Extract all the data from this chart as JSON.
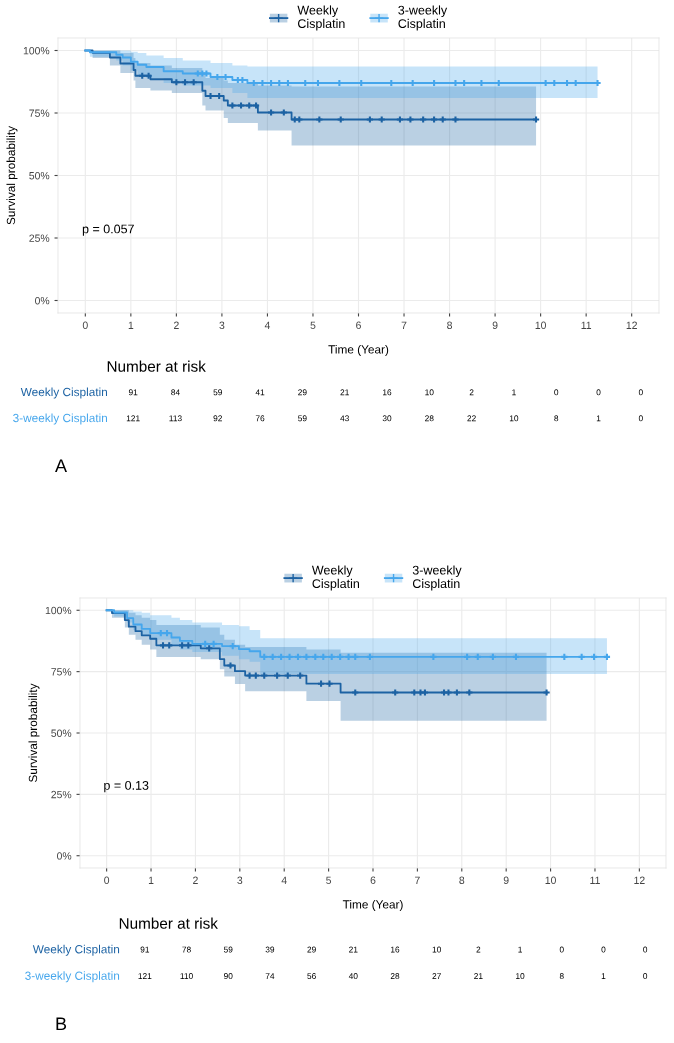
{
  "chart_data": [
    {
      "type": "step",
      "xlabel": "Time (Year)",
      "ylabel": "Survival probability",
      "annotations": [
        "p = 0.057"
      ],
      "xlim": [
        -0.6,
        12.6
      ],
      "xticks": [
        0,
        1,
        2,
        3,
        4,
        5,
        6,
        7,
        8,
        9,
        10,
        11,
        12
      ],
      "ylim": [
        -5,
        105
      ],
      "yticks": [
        {
          "value": 0,
          "label": "0%"
        },
        {
          "value": 25,
          "label": "25%"
        },
        {
          "value": 50,
          "label": "50%"
        },
        {
          "value": 75,
          "label": "75%"
        },
        {
          "value": 100,
          "label": "100%"
        }
      ],
      "grid": true,
      "legend": "top",
      "series": [
        {
          "name": "Weekly\nCisplatin",
          "color": "#1c62a3",
          "x": [
            0,
            0.16,
            0.54,
            0.77,
            1.06,
            1.1,
            1.43,
            1.9,
            2.57,
            2.64,
            3.04,
            3.13,
            3.79,
            4.53,
            9.9
          ],
          "values": [
            100,
            99.1,
            97.2,
            94.8,
            92.2,
            89.9,
            88.5,
            87.3,
            83.9,
            81.8,
            80,
            78,
            75.2,
            72.4,
            72.4
          ],
          "lower": [
            100,
            97,
            94,
            91,
            88,
            85,
            84,
            83,
            78,
            76,
            73,
            71,
            68,
            62,
            62
          ],
          "upper": [
            100,
            100,
            100,
            99,
            97,
            95,
            94,
            93,
            91,
            89,
            88,
            87,
            86,
            85.6,
            85.6
          ]
        },
        {
          "name": "3-weekly\nCisplatin",
          "color": "#45a6ec",
          "x": [
            0,
            0.1,
            0.68,
            0.82,
            1.0,
            1.15,
            1.34,
            1.72,
            2.14,
            2.75,
            3.23,
            3.56,
            11.25
          ],
          "values": [
            100,
            99.3,
            98.3,
            97.2,
            95.5,
            94.3,
            93.4,
            91.7,
            90.8,
            89.4,
            88.2,
            87.0,
            87.0
          ],
          "lower": [
            100,
            97.5,
            96,
            94,
            92,
            90,
            89,
            87,
            86,
            85,
            83,
            81,
            81
          ],
          "upper": [
            100,
            100,
            100,
            100,
            99.5,
            99,
            98,
            97,
            96,
            95,
            94,
            93.6,
            93.6
          ]
        },
        {
          "type": "scatter",
          "marker": "cross",
          "color": "#1c62a3",
          "x": [
            1.25,
            1.39,
            2.0,
            2.19,
            2.38,
            2.75,
            2.94,
            3.23,
            3.42,
            3.6,
            3.75,
            4.08,
            4.36,
            4.6,
            4.7,
            5.14,
            5.61,
            6.25,
            6.51,
            6.91,
            7.14,
            7.42,
            7.66,
            7.85,
            8.13,
            9.9
          ],
          "values": [
            89.9,
            89.9,
            87.3,
            87.3,
            87.3,
            81.8,
            81.8,
            78,
            78,
            78,
            78,
            75.2,
            75.2,
            72.4,
            72.4,
            72.4,
            72.4,
            72.4,
            72.4,
            72.4,
            72.4,
            72.4,
            72.4,
            72.4,
            72.4,
            72.4
          ]
        },
        {
          "type": "scatter",
          "marker": "cross",
          "color": "#45a6ec",
          "x": [
            2.47,
            2.57,
            2.66,
            2.9,
            3.08,
            3.35,
            3.45,
            3.7,
            3.89,
            4.08,
            4.26,
            4.45,
            4.83,
            5.11,
            5.58,
            6.06,
            6.72,
            7.19,
            7.66,
            8.13,
            8.32,
            8.7,
            9.08,
            10.11,
            10.3,
            10.58,
            10.77,
            11.25
          ],
          "values": [
            90.8,
            90.8,
            90.8,
            89.4,
            89.4,
            88.2,
            88.2,
            87.0,
            87.0,
            87.0,
            87.0,
            87.0,
            87.0,
            87.0,
            87.0,
            87.0,
            87.0,
            87.0,
            87.0,
            87.0,
            87.0,
            87.0,
            87.0,
            87.0,
            87.0,
            87.0,
            87.0,
            87.0
          ]
        }
      ]
    },
    {
      "type": "other",
      "title": "Number at risk",
      "y_categories": [
        "Weekly Cisplatin",
        "3-weekly Cisplatin"
      ],
      "annotations": [
        "A",
        "91",
        "84",
        "59",
        "41",
        "29",
        "21",
        "16",
        "10",
        "2",
        "1",
        "0",
        "0",
        "0",
        "121",
        "113",
        "92",
        "76",
        "59",
        "43",
        "30",
        "28",
        "22",
        "10",
        "8",
        "1",
        "0"
      ]
    },
    {
      "type": "step",
      "xlabel": "Time (Year)",
      "ylabel": "Survival probability",
      "annotations": [
        "p = 0.13"
      ],
      "xlim": [
        -0.6,
        12.6
      ],
      "xticks": [
        0,
        1,
        2,
        3,
        4,
        5,
        6,
        7,
        8,
        9,
        10,
        11,
        12
      ],
      "ylim": [
        -5,
        105
      ],
      "yticks": [
        {
          "value": 0,
          "label": "0%"
        },
        {
          "value": 25,
          "label": "25%"
        },
        {
          "value": 50,
          "label": "50%"
        },
        {
          "value": 75,
          "label": "75%"
        },
        {
          "value": 100,
          "label": "100%"
        }
      ],
      "grid": true,
      "legend": "top",
      "series": [
        {
          "name": "Weekly\nCisplatin",
          "color": "#1c62a3",
          "x": [
            0,
            0.12,
            0.41,
            0.5,
            0.65,
            0.79,
            0.98,
            1.12,
            2.12,
            2.55,
            2.65,
            2.89,
            3.12,
            4.5,
            5.27,
            9.91
          ],
          "values": [
            100,
            98.9,
            96,
            93.3,
            91.5,
            89.8,
            88.4,
            85.7,
            84.5,
            80.1,
            77.5,
            75.2,
            73.4,
            70.1,
            66.5,
            66.5
          ],
          "lower": [
            100,
            97,
            93,
            90,
            88,
            86,
            84,
            81,
            80,
            76,
            73,
            70,
            67,
            63,
            55,
            55
          ],
          "upper": [
            100,
            100,
            100,
            99,
            98,
            97,
            96,
            94,
            93,
            90,
            88,
            86,
            85,
            84,
            82.7,
            82.7
          ]
        },
        {
          "name": "3-weekly\nCisplatin",
          "color": "#45a6ec",
          "x": [
            0,
            0.17,
            0.46,
            0.6,
            0.79,
            0.98,
            1.46,
            1.65,
            1.93,
            2.6,
            2.98,
            3.22,
            3.46,
            11.27
          ],
          "values": [
            100,
            99.1,
            96.8,
            94.2,
            92.4,
            90.7,
            88.9,
            87.5,
            86.3,
            85.4,
            84.2,
            83.3,
            81,
            81
          ],
          "lower": [
            100,
            97.5,
            95,
            92,
            90,
            88,
            86,
            84,
            83,
            81.5,
            80,
            79,
            74,
            74
          ],
          "upper": [
            100,
            100,
            100,
            99.5,
            99,
            98,
            97,
            96,
            95,
            94,
            93.5,
            92,
            88.6,
            88.6
          ]
        },
        {
          "type": "scatter",
          "marker": "cross",
          "color": "#1c62a3",
          "x": [
            1.27,
            1.41,
            1.7,
            1.84,
            2.31,
            2.79,
            3.22,
            3.36,
            3.55,
            3.84,
            4.08,
            4.36,
            4.83,
            5.02,
            5.6,
            6.5,
            6.93,
            7.07,
            7.17,
            7.6,
            7.7,
            7.89,
            8.17,
            9.91
          ],
          "values": [
            85.7,
            85.7,
            85.7,
            85.7,
            84.5,
            77.5,
            73.4,
            73.4,
            73.4,
            73.4,
            73.4,
            73.4,
            70.1,
            70.1,
            66.5,
            66.5,
            66.5,
            66.5,
            66.5,
            66.5,
            66.5,
            66.5,
            66.5,
            66.5
          ]
        },
        {
          "type": "scatter",
          "marker": "cross",
          "color": "#45a6ec",
          "x": [
            1.22,
            1.36,
            2.22,
            2.41,
            2.84,
            3.55,
            3.74,
            3.93,
            4.12,
            4.31,
            4.5,
            4.7,
            4.88,
            5.07,
            5.26,
            5.45,
            5.6,
            5.93,
            7.36,
            8.12,
            8.36,
            8.7,
            9.22,
            10.31,
            10.7,
            10.98,
            11.27
          ],
          "values": [
            90.7,
            90.7,
            86.3,
            86.3,
            85.4,
            81,
            81,
            81,
            81,
            81,
            81,
            81,
            81,
            81,
            81,
            81,
            81,
            81,
            81,
            81,
            81,
            81,
            81,
            81,
            81,
            81,
            81
          ]
        }
      ]
    },
    {
      "type": "other",
      "title": "Number at risk",
      "y_categories": [
        "Weekly Cisplatin",
        "3-weekly Cisplatin"
      ],
      "annotations": [
        "B",
        "91",
        "78",
        "59",
        "39",
        "29",
        "21",
        "16",
        "10",
        "2",
        "1",
        "0",
        "0",
        "0",
        "121",
        "110",
        "90",
        "74",
        "56",
        "40",
        "28",
        "27",
        "21",
        "10",
        "8",
        "1",
        "0"
      ]
    }
  ]
}
